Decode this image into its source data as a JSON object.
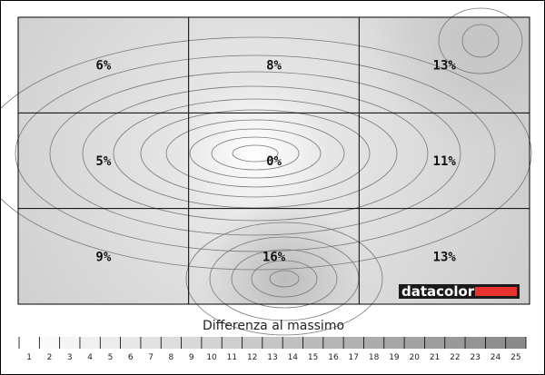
{
  "chart_data": {
    "type": "heatmap",
    "title": "",
    "grid": {
      "rows": 3,
      "cols": 3
    },
    "zones": [
      {
        "row": 0,
        "col": 0,
        "label": "6%",
        "value": 6
      },
      {
        "row": 0,
        "col": 1,
        "label": "8%",
        "value": 8
      },
      {
        "row": 0,
        "col": 2,
        "label": "13%",
        "value": 13
      },
      {
        "row": 1,
        "col": 0,
        "label": "5%",
        "value": 5
      },
      {
        "row": 1,
        "col": 1,
        "label": "0%",
        "value": 0
      },
      {
        "row": 1,
        "col": 2,
        "label": "11%",
        "value": 11
      },
      {
        "row": 2,
        "col": 0,
        "label": "9%",
        "value": 9
      },
      {
        "row": 2,
        "col": 1,
        "label": "16%",
        "value": 16
      },
      {
        "row": 2,
        "col": 2,
        "label": "13%",
        "value": 13
      }
    ],
    "scale": {
      "title": "Differenza al massimo",
      "min": 0,
      "max": 25,
      "ticks": [
        "1",
        "2",
        "3",
        "4",
        "5",
        "6",
        "7",
        "8",
        "9",
        "10",
        "11",
        "12",
        "13",
        "14",
        "15",
        "16",
        "17",
        "18",
        "19",
        "20",
        "21",
        "22",
        "23",
        "24",
        "25"
      ]
    },
    "colors": {
      "low": "#ffffff",
      "high": "#8a8a8a",
      "contour": "#777777",
      "grid": "#000000",
      "logo_bar": "#e8322e"
    }
  },
  "logo": {
    "text": "datacolor"
  }
}
